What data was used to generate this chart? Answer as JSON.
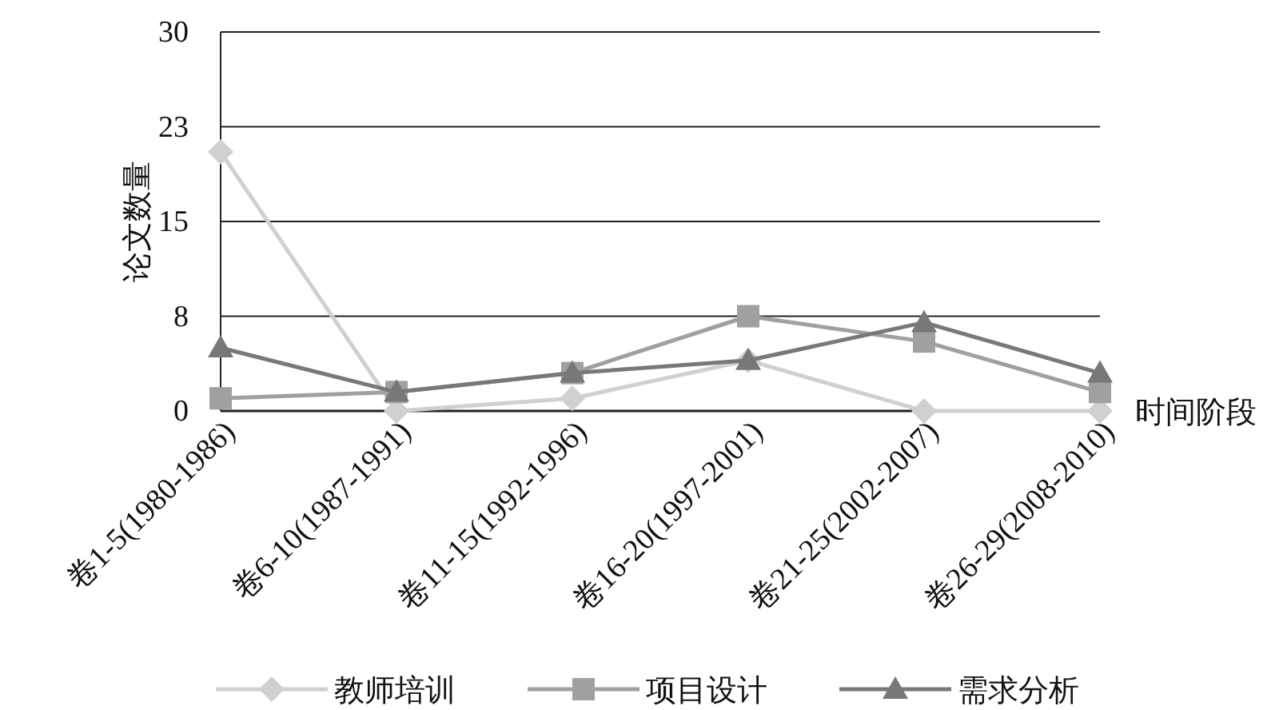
{
  "chart_data": {
    "type": "line",
    "xlabel": "时间阶段",
    "ylabel": "论文数量",
    "categories": [
      "卷1-5(1980-1986)",
      "卷6-10(1987-1991)",
      "卷11-15(1992-1996)",
      "卷16-20(1997-2001)",
      "卷21-25(2002-2007)",
      "卷26-29(2008-2010)"
    ],
    "series": [
      {
        "name": "教师培训",
        "color": "#d0d0d0",
        "marker": "diamond",
        "values": [
          20.5,
          0,
          1,
          4,
          0,
          0
        ]
      },
      {
        "name": "项目设计",
        "color": "#a0a0a0",
        "marker": "square",
        "values": [
          1,
          1.5,
          3,
          7.5,
          5.5,
          1.5
        ]
      },
      {
        "name": "需求分析",
        "color": "#787878",
        "marker": "triangle",
        "values": [
          5,
          1.5,
          3,
          4,
          7,
          3
        ]
      }
    ],
    "ylim": [
      0,
      30
    ],
    "yticks": [
      0,
      {
        "value": 7.5,
        "label": "8"
      },
      15,
      {
        "value": 22.5,
        "label": "23"
      },
      30
    ],
    "grid": "y",
    "legend": "bottom",
    "line_style": "solid"
  }
}
